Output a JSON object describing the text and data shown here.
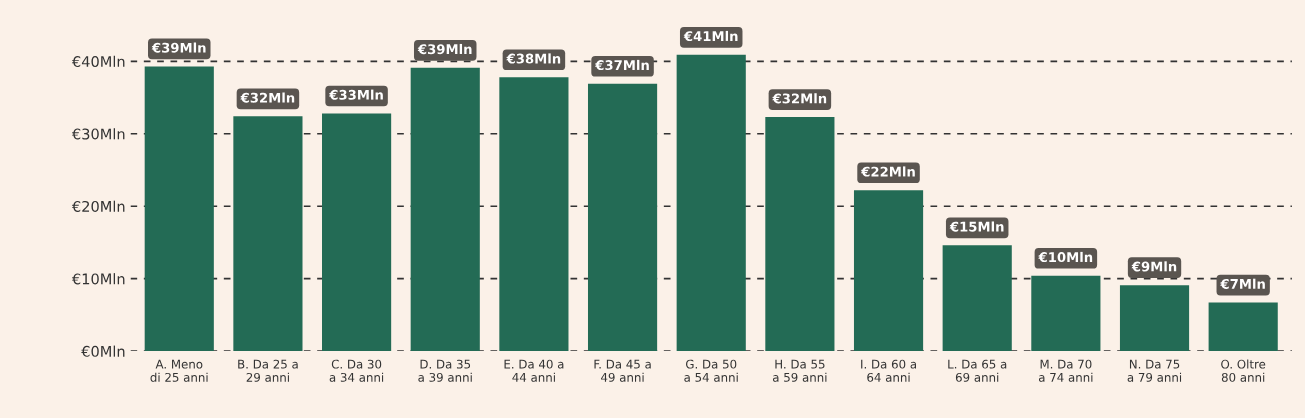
{
  "chart_data": {
    "type": "bar",
    "categories": [
      "A. Meno\ndi 25 anni",
      "B. Da 25 a\n29 anni",
      "C. Da 30\na 34 anni",
      "D. Da 35\na 39 anni",
      "E. Da 40 a\n44 anni",
      "F. Da 45 a\n49 anni",
      "G. Da 50\na 54 anni",
      "H. Da 55\na 59 anni",
      "I. Da 60 a\n64 anni",
      "L. Da 65 a\n69 anni",
      "M. Da 70\na 74 anni",
      "N. Da 75\na 79 anni",
      "O. Oltre\n80 anni"
    ],
    "values": [
      39.3,
      32.4,
      32.8,
      39.1,
      37.8,
      36.9,
      40.9,
      32.3,
      22.2,
      14.6,
      10.4,
      9.1,
      6.7
    ],
    "value_labels": [
      "€39Mln",
      "€32Mln",
      "€33Mln",
      "€39Mln",
      "€38Mln",
      "€37Mln",
      "€41Mln",
      "€32Mln",
      "€22Mln",
      "€15Mln",
      "€10Mln",
      "€9Mln",
      "€7Mln"
    ],
    "color": "#236b55",
    "ylim": [
      0,
      45
    ],
    "yticks": [
      {
        "value": 0,
        "label": "€0Mln"
      },
      {
        "value": 10,
        "label": "€10Mln"
      },
      {
        "value": 20,
        "label": "€20Mln"
      },
      {
        "value": 30,
        "label": "€30Mln"
      },
      {
        "value": 40,
        "label": "€40Mln"
      }
    ],
    "grid": "y",
    "line_style": "dashed"
  }
}
